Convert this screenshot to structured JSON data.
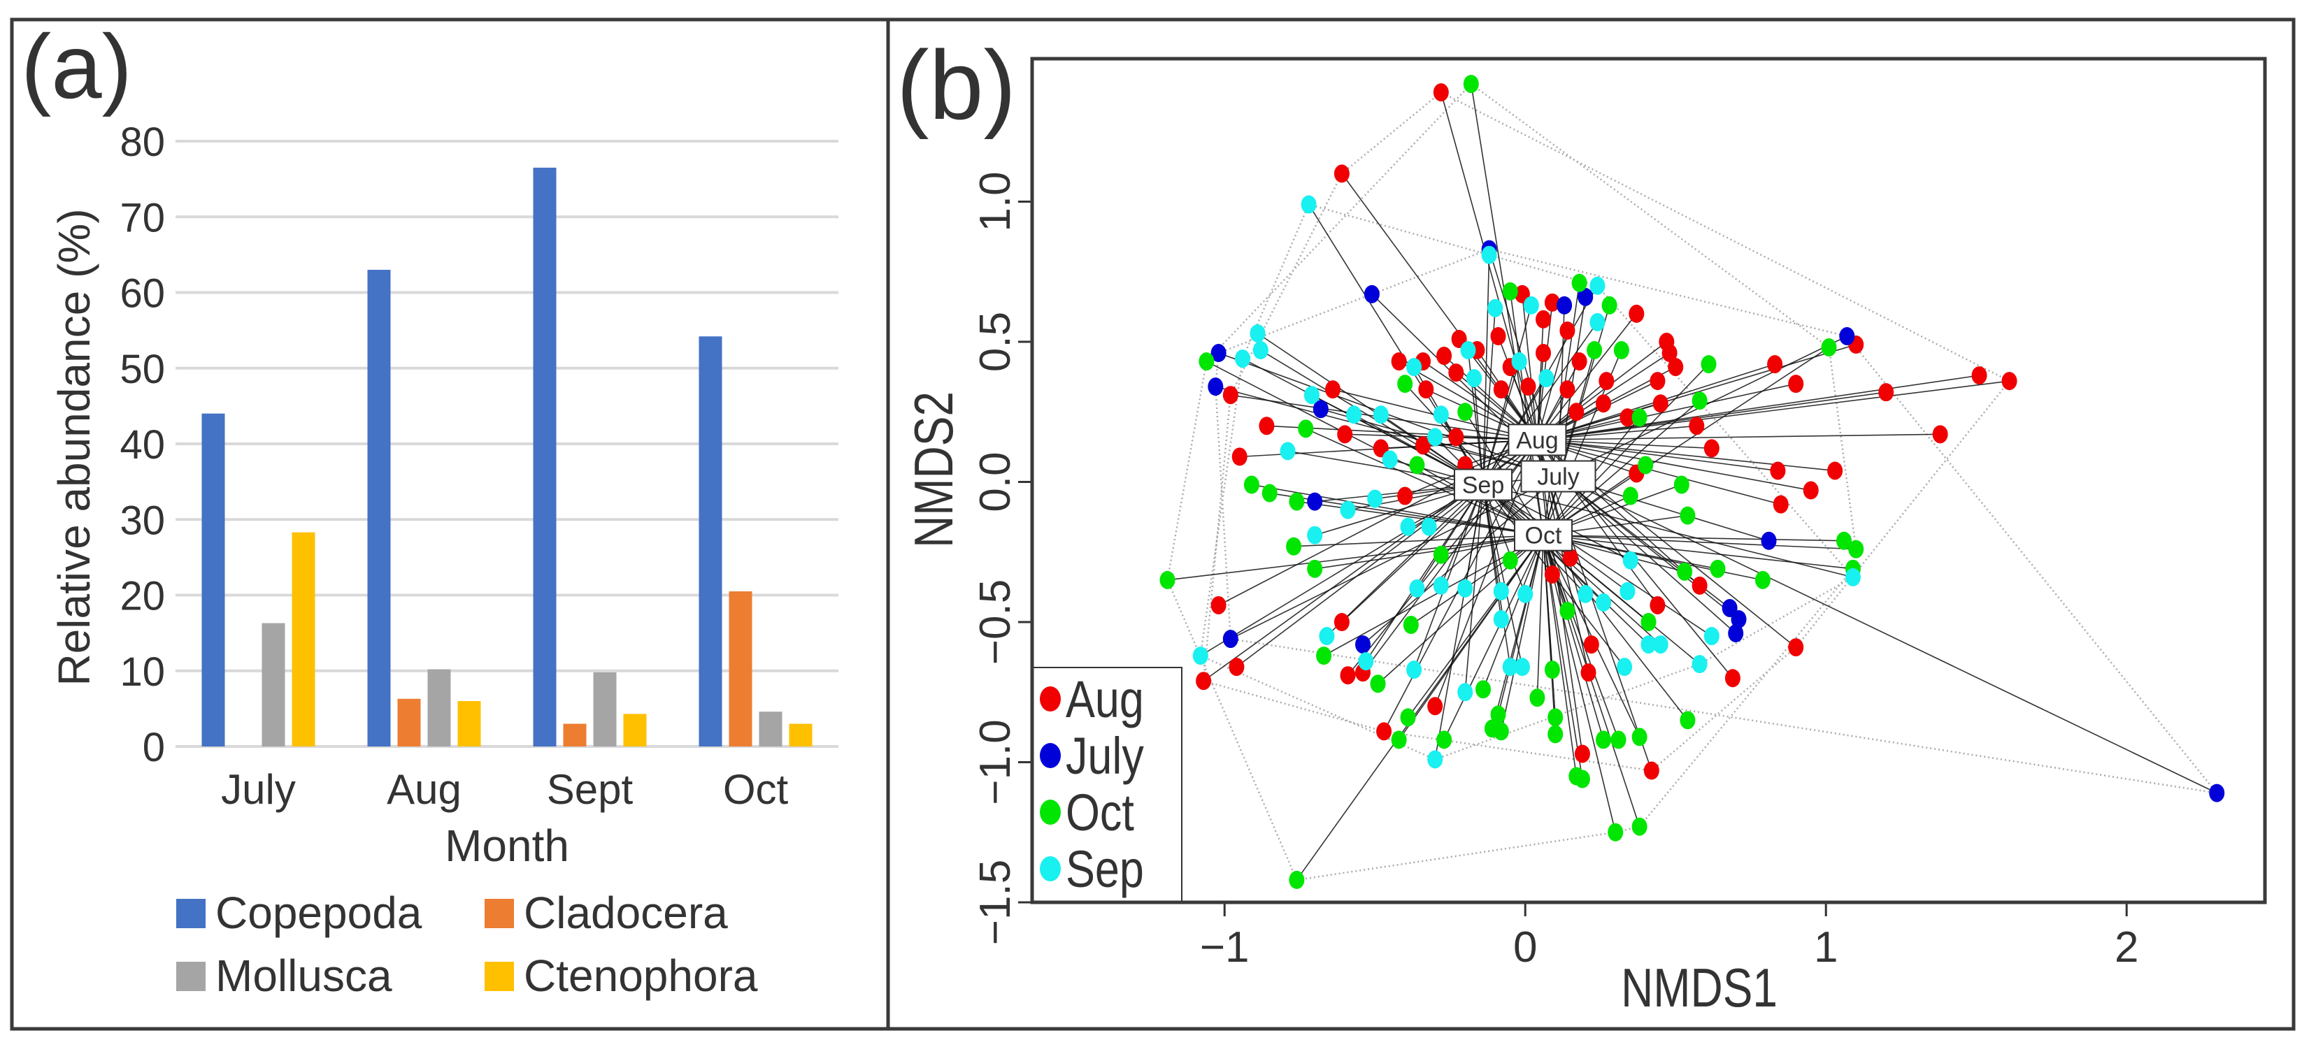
{
  "chart_data": [
    {
      "panel_label": "(a)",
      "type": "bar",
      "title": "",
      "xlabel": "Month",
      "ylabel": "Relative abundance (%)",
      "ylim": [
        0,
        80
      ],
      "yticks": [
        0,
        10,
        20,
        30,
        40,
        50,
        60,
        70,
        80
      ],
      "grid": true,
      "legend_position": "bottom",
      "categories": [
        "July",
        "Aug",
        "Sept",
        "Oct"
      ],
      "series": [
        {
          "name": "Copepoda",
          "color": "#4472c4",
          "values": [
            44,
            63,
            76.5,
            54.2
          ]
        },
        {
          "name": "Cladocera",
          "color": "#ed7d31",
          "values": [
            0,
            6.3,
            3,
            20.5
          ]
        },
        {
          "name": "Mollusca",
          "color": "#a5a5a5",
          "values": [
            16.3,
            10.2,
            9.8,
            4.6
          ]
        },
        {
          "name": "Ctenophora",
          "color": "#ffc000",
          "values": [
            28.3,
            6,
            4.3,
            3
          ]
        }
      ]
    },
    {
      "panel_label": "(b)",
      "type": "scatter",
      "title": "",
      "xlabel": "NMDS1",
      "ylabel": "NMDS2",
      "xlim": [
        -1.64,
        2.46
      ],
      "ylim": [
        -1.5,
        1.51
      ],
      "xticks": [
        -1,
        0,
        1,
        2
      ],
      "xtick_labels": [
        "−1",
        "0",
        "1",
        "2"
      ],
      "yticks": [
        -1.5,
        -1.0,
        -0.5,
        0.0,
        0.5,
        1.0
      ],
      "ytick_labels": [
        "−1.5",
        "−1.0",
        "−0.5",
        "0.0",
        "0.5",
        "1.0"
      ],
      "grid": false,
      "legend_position": "bottom-left",
      "legend_order": [
        "Aug",
        "July",
        "Oct",
        "Sep"
      ],
      "series": [
        {
          "name": "Aug",
          "color": "#f00000",
          "centroid": [
            0.04,
            0.15
          ],
          "points": [
            [
              -0.28,
              1.39
            ],
            [
              -0.61,
              1.1
            ],
            [
              0.37,
              0.6
            ],
            [
              0.47,
              0.5
            ],
            [
              0.48,
              0.46
            ],
            [
              0.5,
              0.41
            ],
            [
              0.44,
              0.36
            ],
            [
              0.45,
              0.28
            ],
            [
              0.57,
              0.2
            ],
            [
              0.62,
              0.12
            ],
            [
              0.83,
              0.42
            ],
            [
              0.9,
              0.35
            ],
            [
              1.1,
              0.49
            ],
            [
              1.2,
              0.32
            ],
            [
              1.51,
              0.38
            ],
            [
              1.61,
              0.36
            ],
            [
              1.38,
              0.17
            ],
            [
              0.84,
              0.04
            ],
            [
              1.03,
              0.04
            ],
            [
              0.95,
              -0.03
            ],
            [
              0.85,
              -0.08
            ],
            [
              0.37,
              0.03
            ],
            [
              0.58,
              -0.37
            ],
            [
              0.44,
              -0.44
            ],
            [
              0.9,
              -0.59
            ],
            [
              0.69,
              -0.7
            ],
            [
              0.22,
              -0.58
            ],
            [
              0.21,
              -0.68
            ],
            [
              0.19,
              -0.97
            ],
            [
              0.42,
              -1.03
            ],
            [
              -0.3,
              -0.8
            ],
            [
              -0.47,
              -0.89
            ],
            [
              -0.59,
              -0.69
            ],
            [
              -0.54,
              -0.68
            ],
            [
              -0.61,
              -0.5
            ],
            [
              -0.96,
              -0.66
            ],
            [
              -1.07,
              -0.71
            ],
            [
              -1.02,
              -0.44
            ],
            [
              -0.95,
              0.09
            ],
            [
              -0.86,
              0.2
            ],
            [
              -0.98,
              0.31
            ],
            [
              -0.64,
              0.33
            ],
            [
              -0.6,
              0.17
            ],
            [
              -0.42,
              0.43
            ],
            [
              -0.34,
              0.43
            ],
            [
              -0.27,
              0.45
            ],
            [
              -0.23,
              0.39
            ],
            [
              -0.22,
              0.51
            ],
            [
              -0.16,
              0.47
            ],
            [
              -0.09,
              0.52
            ],
            [
              -0.01,
              0.67
            ],
            [
              0.09,
              0.64
            ],
            [
              0.06,
              0.58
            ],
            [
              0.14,
              0.54
            ],
            [
              0.18,
              0.43
            ],
            [
              0.27,
              0.36
            ],
            [
              -0.05,
              0.41
            ],
            [
              0.06,
              0.46
            ],
            [
              -0.08,
              0.33
            ],
            [
              0.01,
              0.34
            ],
            [
              0.14,
              0.33
            ],
            [
              0.26,
              0.28
            ],
            [
              0.34,
              0.23
            ],
            [
              -0.34,
              0.13
            ],
            [
              -0.23,
              0.16
            ],
            [
              -0.2,
              0.06
            ],
            [
              -0.4,
              -0.05
            ],
            [
              0.15,
              -0.27
            ],
            [
              0.09,
              -0.33
            ],
            [
              0.17,
              0.25
            ],
            [
              -0.33,
              0.33
            ],
            [
              -0.48,
              0.12
            ]
          ]
        },
        {
          "name": "July",
          "color": "#0000d8",
          "centroid": [
            0.11,
            0.02
          ],
          "points": [
            [
              -0.12,
              0.83
            ],
            [
              -0.51,
              0.67
            ],
            [
              -1.02,
              0.46
            ],
            [
              -1.03,
              0.34
            ],
            [
              -0.68,
              0.26
            ],
            [
              -0.7,
              -0.07
            ],
            [
              -0.98,
              -0.56
            ],
            [
              -0.54,
              -0.58
            ],
            [
              1.07,
              0.52
            ],
            [
              0.81,
              -0.21
            ],
            [
              0.68,
              -0.45
            ],
            [
              0.71,
              -0.49
            ],
            [
              0.7,
              -0.54
            ],
            [
              2.3,
              -1.11
            ],
            [
              0.2,
              0.66
            ],
            [
              0.13,
              0.63
            ]
          ]
        },
        {
          "name": "Oct",
          "color": "#00e600",
          "centroid": [
            0.06,
            -0.19
          ],
          "points": [
            [
              -0.18,
              1.42
            ],
            [
              0.18,
              0.71
            ],
            [
              0.28,
              0.63
            ],
            [
              -0.05,
              0.68
            ],
            [
              -1.06,
              0.43
            ],
            [
              0.61,
              0.42
            ],
            [
              0.58,
              0.29
            ],
            [
              1.01,
              0.48
            ],
            [
              0.4,
              0.06
            ],
            [
              0.52,
              -0.01
            ],
            [
              0.35,
              -0.05
            ],
            [
              0.54,
              -0.12
            ],
            [
              1.06,
              -0.21
            ],
            [
              1.1,
              -0.24
            ],
            [
              1.09,
              -0.31
            ],
            [
              0.79,
              -0.35
            ],
            [
              0.64,
              -0.31
            ],
            [
              0.53,
              -0.32
            ],
            [
              0.41,
              -0.5
            ],
            [
              0.54,
              -0.85
            ],
            [
              0.38,
              -0.91
            ],
            [
              0.31,
              -0.92
            ],
            [
              0.26,
              -0.92
            ],
            [
              0.17,
              -1.05
            ],
            [
              0.19,
              -1.06
            ],
            [
              0.3,
              -1.25
            ],
            [
              0.38,
              -1.23
            ],
            [
              0.1,
              -0.84
            ],
            [
              0.1,
              -0.9
            ],
            [
              0.04,
              -0.77
            ],
            [
              -0.08,
              -0.89
            ],
            [
              -0.11,
              -0.88
            ],
            [
              -0.09,
              -0.83
            ],
            [
              -0.14,
              -0.74
            ],
            [
              -0.27,
              -0.92
            ],
            [
              -0.42,
              -0.92
            ],
            [
              -0.39,
              -0.84
            ],
            [
              -0.49,
              -0.72
            ],
            [
              -0.67,
              -0.62
            ],
            [
              -0.38,
              -0.51
            ],
            [
              -0.7,
              -0.31
            ],
            [
              -0.77,
              -0.23
            ],
            [
              -0.76,
              -0.07
            ],
            [
              -0.85,
              -0.04
            ],
            [
              -0.91,
              -0.01
            ],
            [
              -0.73,
              0.19
            ],
            [
              -0.4,
              0.35
            ],
            [
              -1.19,
              -0.35
            ],
            [
              -0.76,
              -1.42
            ],
            [
              0.09,
              -0.67
            ],
            [
              0.14,
              -0.46
            ],
            [
              -0.28,
              -0.26
            ],
            [
              -0.05,
              -0.28
            ],
            [
              0.32,
              0.47
            ],
            [
              0.38,
              0.23
            ],
            [
              0.23,
              0.47
            ],
            [
              -0.2,
              0.25
            ],
            [
              -0.36,
              0.06
            ]
          ]
        },
        {
          "name": "Sep",
          "color": "#19f0f0",
          "centroid": [
            -0.14,
            -0.01
          ],
          "points": [
            [
              -0.72,
              0.99
            ],
            [
              -0.12,
              0.81
            ],
            [
              0.24,
              0.7
            ],
            [
              -0.1,
              0.62
            ],
            [
              0.02,
              0.63
            ],
            [
              0.24,
              0.57
            ],
            [
              -0.89,
              0.53
            ],
            [
              -0.94,
              0.44
            ],
            [
              -0.88,
              0.47
            ],
            [
              -0.71,
              0.31
            ],
            [
              -0.57,
              0.24
            ],
            [
              -0.48,
              0.24
            ],
            [
              -0.79,
              0.11
            ],
            [
              -0.45,
              0.08
            ],
            [
              -0.59,
              -0.1
            ],
            [
              -0.5,
              -0.06
            ],
            [
              -0.7,
              -0.19
            ],
            [
              -1.08,
              -0.62
            ],
            [
              -0.66,
              -0.55
            ],
            [
              -0.53,
              -0.64
            ],
            [
              -0.37,
              -0.67
            ],
            [
              -0.3,
              -0.99
            ],
            [
              -0.2,
              -0.75
            ],
            [
              -0.05,
              -0.66
            ],
            [
              -0.01,
              -0.66
            ],
            [
              0.35,
              -0.28
            ],
            [
              0.34,
              -0.39
            ],
            [
              0.26,
              -0.43
            ],
            [
              0.2,
              -0.4
            ],
            [
              0.41,
              -0.58
            ],
            [
              0.45,
              -0.58
            ],
            [
              0.58,
              -0.65
            ],
            [
              0.62,
              -0.55
            ],
            [
              0.33,
              -0.66
            ],
            [
              1.09,
              -0.34
            ],
            [
              -0.36,
              -0.38
            ],
            [
              -0.28,
              -0.37
            ],
            [
              -0.2,
              -0.38
            ],
            [
              -0.08,
              -0.39
            ],
            [
              0.0,
              -0.4
            ],
            [
              -0.08,
              -0.49
            ],
            [
              -0.39,
              -0.16
            ],
            [
              -0.32,
              -0.16
            ],
            [
              -0.3,
              0.16
            ],
            [
              -0.37,
              0.41
            ],
            [
              -0.19,
              0.47
            ],
            [
              -0.17,
              0.37
            ],
            [
              -0.02,
              0.43
            ],
            [
              0.07,
              0.37
            ],
            [
              -0.28,
              0.24
            ]
          ]
        }
      ]
    }
  ]
}
